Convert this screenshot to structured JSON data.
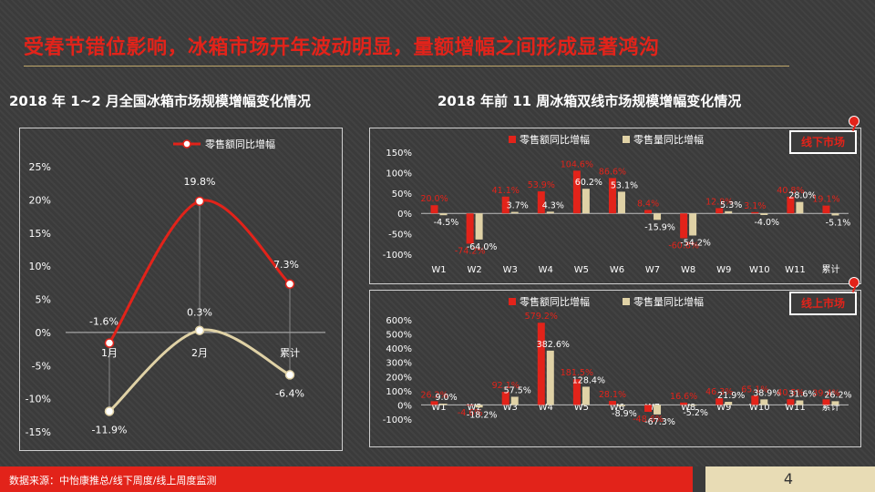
{
  "slide": {
    "title": "受春节错位影响，冰箱市场开年波动明显，量额增幅之间形成显著鸿沟",
    "left_subtitle": "2018 年 1~2 月全国冰箱市场规模增幅变化情况",
    "right_subtitle": "2018 年前 11 周冰箱双线市场规模增幅变化情况",
    "offline_tag": "线下市场",
    "online_tag": "线上市场",
    "source": "数据来源：中怡康推总/线下周度/线上周度监测",
    "page_number": "4"
  },
  "colors": {
    "red": "#e2231a",
    "beige": "#e0d2a6",
    "background": "#3b3b3b"
  },
  "chart_data": [
    {
      "type": "line",
      "title": "2018 年 1~2 月全国冰箱市场规模增幅变化情况",
      "categories": [
        "1月",
        "2月",
        "累计"
      ],
      "y_ticks": [
        "25%",
        "20%",
        "15%",
        "10%",
        "5%",
        "0%",
        "-5%",
        "-10%",
        "-15%"
      ],
      "ylim": [
        -15,
        25
      ],
      "legend": [
        "零售额同比增幅"
      ],
      "series": [
        {
          "name": "零售额同比增幅",
          "color": "#e2231a",
          "values": [
            -1.6,
            19.8,
            7.3
          ],
          "labels": [
            "-1.6%",
            "19.8%",
            "7.3%"
          ]
        },
        {
          "name": "零售量同比增幅",
          "color": "#e0d2a6",
          "values": [
            -11.9,
            0.3,
            -6.4
          ],
          "labels": [
            "-11.9%",
            "0.3%",
            "-6.4%"
          ]
        }
      ]
    },
    {
      "type": "bar",
      "title": "线下市场",
      "categories": [
        "W1",
        "W2",
        "W3",
        "W4",
        "W5",
        "W6",
        "W7",
        "W8",
        "W9",
        "W10",
        "W11",
        "累计"
      ],
      "y_ticks": [
        "150%",
        "100%",
        "50%",
        "0%",
        "-50%",
        "-100%"
      ],
      "ylim": [
        -100,
        150
      ],
      "series": [
        {
          "name": "零售额同比增幅",
          "color": "#e2231a",
          "values": [
            20.0,
            -74.2,
            41.1,
            53.9,
            104.6,
            86.6,
            8.4,
            -60.8,
            12.9,
            3.1,
            40.8,
            19.1
          ],
          "labels": [
            "20.0%",
            "-74.2%",
            "41.1%",
            "53.9%",
            "104.6%",
            "86.6%",
            "8.4%",
            "-60.8%",
            "12.9%",
            "3.1%",
            "40.8%",
            "19.1%"
          ]
        },
        {
          "name": "零售量同比增幅",
          "color": "#e0d2a6",
          "values": [
            -4.5,
            -64.0,
            3.7,
            4.3,
            60.2,
            53.1,
            -15.9,
            -54.2,
            5.3,
            -4.0,
            28.0,
            -5.1
          ],
          "labels": [
            "-4.5%",
            "-64.0%",
            "3.7%",
            "4.3%",
            "60.2%",
            "53.1%",
            "-15.9%",
            "-54.2%",
            "5.3%",
            "-4.0%",
            "28.0%",
            "-5.1%"
          ]
        }
      ]
    },
    {
      "type": "bar",
      "title": "线上市场",
      "categories": [
        "W1",
        "W2",
        "W3",
        "W4",
        "W5",
        "W6",
        "W7",
        "W8",
        "W9",
        "W10",
        "W11",
        "累计"
      ],
      "y_ticks": [
        "600%",
        "500%",
        "400%",
        "300%",
        "200%",
        "100%",
        "0%",
        "-100%"
      ],
      "ylim": [
        -100,
        600
      ],
      "series": [
        {
          "name": "零售额同比增幅",
          "color": "#e2231a",
          "values": [
            26.2,
            -4.6,
            92.1,
            579.2,
            181.5,
            28.1,
            -48.6,
            16.6,
            46.3,
            65.1,
            40.5,
            39.4
          ],
          "labels": [
            "26.2%",
            "-4.6%",
            "92.1%",
            "579.2%",
            "181.5%",
            "28.1%",
            "-48.6%",
            "16.6%",
            "46.3%",
            "65.1%",
            "40.5%",
            "39.4%"
          ]
        },
        {
          "name": "零售量同比增幅",
          "color": "#e0d2a6",
          "values": [
            9.0,
            -18.2,
            57.5,
            382.6,
            128.4,
            -8.9,
            -67.3,
            -5.2,
            21.9,
            38.9,
            31.6,
            26.2
          ],
          "labels": [
            "9.0%",
            "-18.2%",
            "57.5%",
            "382.6%",
            "128.4%",
            "-8.9%",
            "-67.3%",
            "-5.2%",
            "21.9%",
            "38.9%",
            "31.6%",
            "26.2%"
          ]
        }
      ]
    }
  ]
}
